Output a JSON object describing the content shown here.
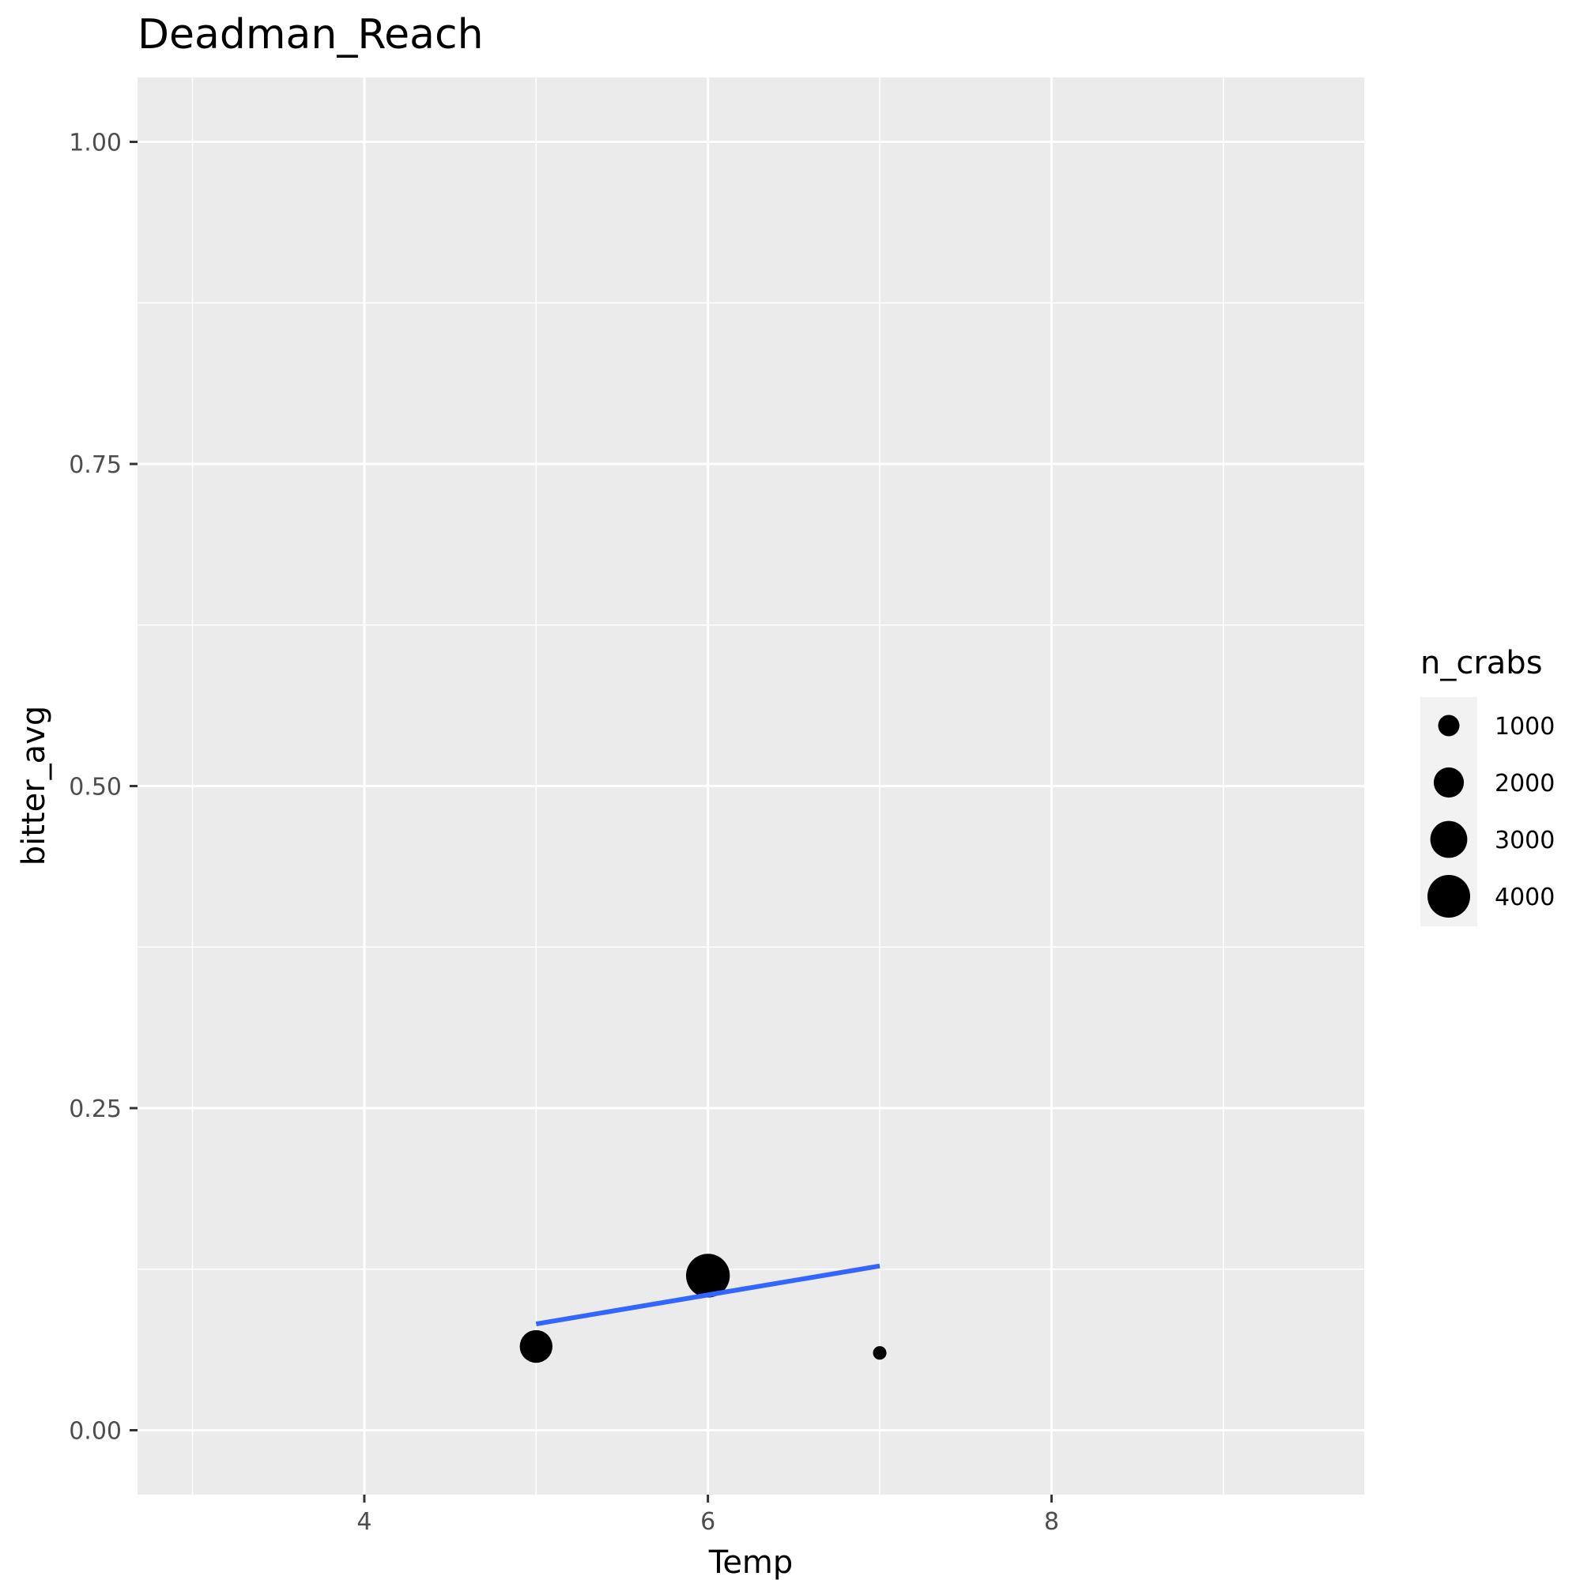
{
  "chart_data": {
    "type": "scatter",
    "title": "Deadman_Reach",
    "xlabel": "Temp",
    "ylabel": "bitter_avg",
    "xlim": [
      2.68,
      9.82
    ],
    "ylim": [
      -0.05,
      1.05
    ],
    "x_ticks": [
      4,
      6,
      8
    ],
    "x_tick_labels": [
      "4",
      "6",
      "8"
    ],
    "x_minor_ticks": [
      3,
      5,
      7,
      9
    ],
    "y_ticks": [
      0,
      0.25,
      0.5,
      0.75,
      1
    ],
    "y_tick_labels": [
      "0.00",
      "0.25",
      "0.50",
      "0.75",
      "1.00"
    ],
    "y_minor_ticks": [
      0.125,
      0.375,
      0.625,
      0.875
    ],
    "grid": true,
    "background": "#ebebeb",
    "point_color": "#000000",
    "points": [
      {
        "x": 5,
        "y": 0.065,
        "n_crabs": 2350
      },
      {
        "x": 6,
        "y": 0.12,
        "n_crabs": 4200
      },
      {
        "x": 7,
        "y": 0.06,
        "n_crabs": 400
      }
    ],
    "fit_line": {
      "color": "#3366ff",
      "x": [
        5,
        7
      ],
      "y": [
        0.0825,
        0.1275
      ]
    },
    "size_legend": {
      "title": "n_crabs",
      "placement": "right",
      "values": [
        1000,
        2000,
        3000,
        4000
      ],
      "labels": [
        "1000",
        "2000",
        "3000",
        "4000"
      ]
    }
  }
}
